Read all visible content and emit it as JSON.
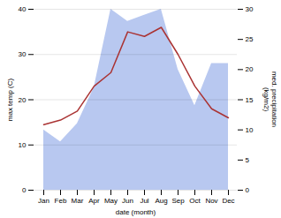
{
  "chart_data": {
    "type": "line",
    "categories": [
      "Jan",
      "Feb",
      "Mar",
      "Apr",
      "May",
      "Jun",
      "Jul",
      "Aug",
      "Sep",
      "Oct",
      "Nov",
      "Dec"
    ],
    "series": [
      {
        "type": "area",
        "color": "#b8c8f0",
        "axis": "y2",
        "values": [
          10,
          8,
          11,
          17,
          30,
          28,
          29,
          30,
          20,
          14,
          21,
          21
        ]
      },
      {
        "type": "line",
        "color": "#aa3333",
        "values": [
          14.5,
          15.5,
          17.5,
          23.0,
          26.0,
          35.0,
          34.0,
          36.0,
          30.0,
          23.0,
          18.0,
          16.0
        ]
      }
    ],
    "xlabel": "date (month)",
    "ylabel": "max temp (C)",
    "y2label": "med. precipitation\n(kg/m2)",
    "ylim": [
      0,
      40
    ],
    "yticks": [
      0,
      10,
      20,
      30,
      40
    ],
    "y2lim": [
      0,
      30
    ],
    "y2ticks": [
      0,
      5,
      10,
      15,
      20,
      25,
      30
    ],
    "grid": true
  }
}
